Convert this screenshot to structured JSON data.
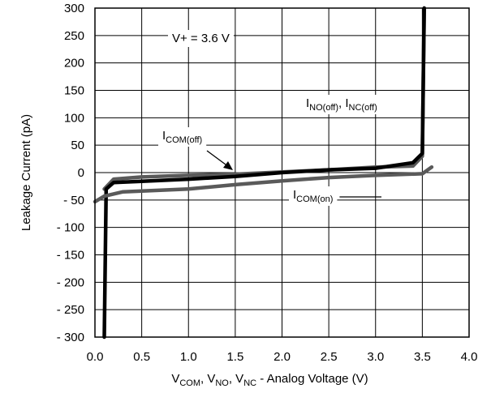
{
  "chart_data": {
    "type": "line",
    "title": "",
    "xlabel": {
      "parts": [
        {
          "t": "V"
        },
        {
          "t": "COM",
          "sub": true
        },
        {
          "t": ", V"
        },
        {
          "t": "NO",
          "sub": true
        },
        {
          "t": ", V"
        },
        {
          "t": "NC",
          "sub": true
        },
        {
          "t": " -  Analog Voltage (V)"
        }
      ]
    },
    "ylabel": "Leakage Current (pA)",
    "xlim": [
      0,
      4
    ],
    "ylim": [
      -300,
      300
    ],
    "x_ticks": [
      0,
      0.5,
      1,
      1.5,
      2,
      2.5,
      3,
      3.5,
      4
    ],
    "x_tick_labels": [
      "0.0",
      "0.5",
      "1.0",
      "1.5",
      "2.0",
      "2.5",
      "3.0",
      "3.5",
      "4.0"
    ],
    "y_ticks": [
      300,
      250,
      200,
      150,
      100,
      50,
      0,
      -50,
      -100,
      -150,
      -200,
      -250,
      -300
    ],
    "y_tick_labels": [
      "300",
      "250",
      "200",
      "150",
      "100",
      "50",
      "0",
      "- 50",
      "- 100",
      "- 150",
      "- 200",
      "- 250",
      "- 300"
    ],
    "grid": true,
    "series": [
      {
        "key": "com_off",
        "color": "#5a5a5a",
        "points": [
          [
            0.1,
            -30
          ],
          [
            0.2,
            -12
          ],
          [
            0.5,
            -8
          ],
          [
            1.0,
            -5
          ],
          [
            1.5,
            -3
          ],
          [
            2.0,
            1
          ],
          [
            2.5,
            5
          ],
          [
            3.0,
            10
          ],
          [
            3.4,
            12
          ],
          [
            3.5,
            30
          ],
          [
            3.52,
            300
          ]
        ]
      },
      {
        "key": "no_nc_off",
        "color": "#000000",
        "points": [
          [
            0.1,
            -300
          ],
          [
            0.12,
            -30
          ],
          [
            0.2,
            -18
          ],
          [
            0.5,
            -16
          ],
          [
            1.0,
            -12
          ],
          [
            1.5,
            -7
          ],
          [
            2.0,
            0
          ],
          [
            2.5,
            5
          ],
          [
            3.0,
            8
          ],
          [
            3.4,
            18
          ],
          [
            3.5,
            35
          ],
          [
            3.52,
            300
          ]
        ]
      },
      {
        "key": "com_on",
        "color": "#5a5a5a",
        "points": [
          [
            0.0,
            -53
          ],
          [
            0.1,
            -43
          ],
          [
            0.3,
            -35
          ],
          [
            1.0,
            -30
          ],
          [
            1.5,
            -22
          ],
          [
            2.0,
            -15
          ],
          [
            2.5,
            -9
          ],
          [
            3.0,
            -5
          ],
          [
            3.5,
            -2
          ],
          [
            3.6,
            10
          ]
        ]
      }
    ],
    "annotations": {
      "supply": "V+ = 3.6 V",
      "com_off": {
        "parts": [
          {
            "t": "I"
          },
          {
            "t": "COM(off)",
            "sub": true
          }
        ]
      },
      "no_nc_off": {
        "parts": [
          {
            "t": "I"
          },
          {
            "t": "NO(off)",
            "sub": true
          },
          {
            "t": ", I"
          },
          {
            "t": "NC(off)",
            "sub": true
          }
        ]
      },
      "com_on": {
        "parts": [
          {
            "t": "I"
          },
          {
            "t": "COM(on)",
            "sub": true
          }
        ]
      }
    }
  }
}
